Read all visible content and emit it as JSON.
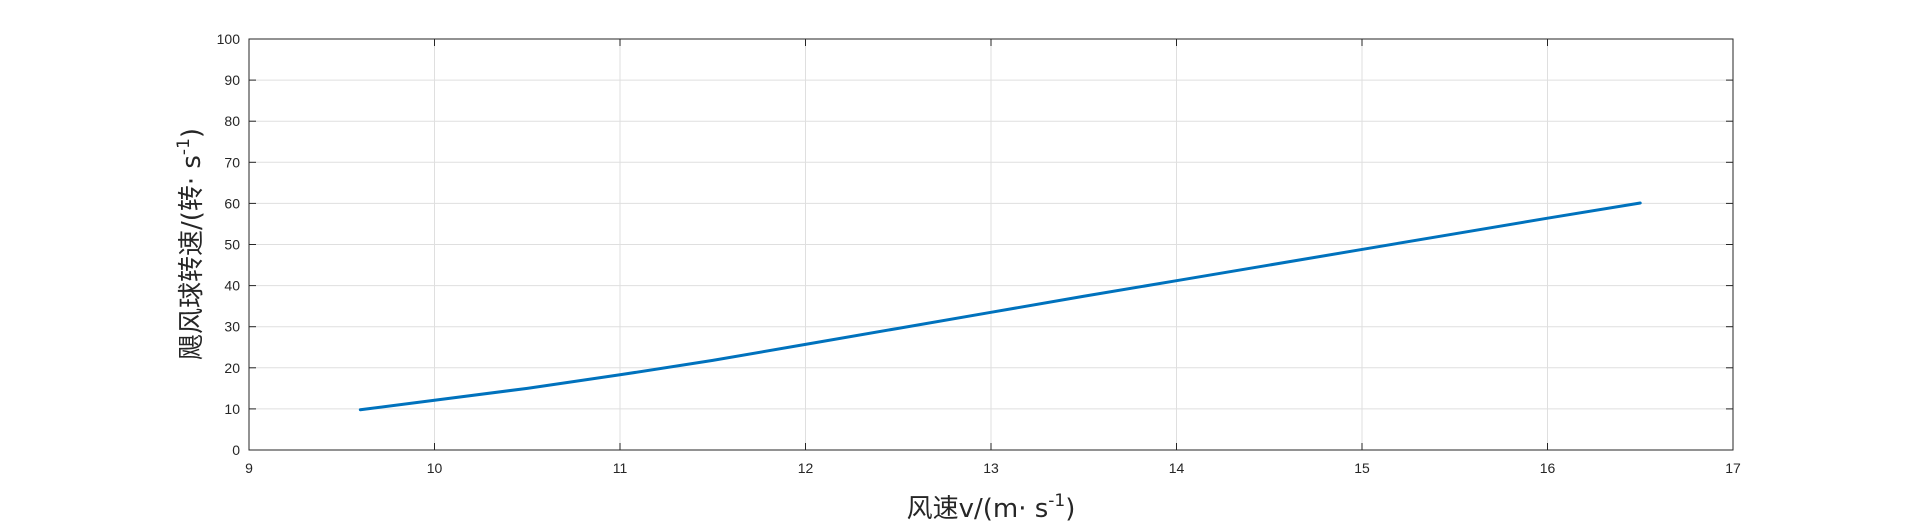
{
  "chart_data": {
    "type": "line",
    "title": "",
    "xlabel": {
      "main": "风速v/(m· s",
      "sup": "-1",
      "tail": ")"
    },
    "ylabel": {
      "main": "飓风球转速/(转· s",
      "sup": "-1",
      "tail": ")"
    },
    "xlim": [
      9,
      17
    ],
    "ylim": [
      0,
      100
    ],
    "xticks": [
      9,
      10,
      11,
      12,
      13,
      14,
      15,
      16,
      17
    ],
    "yticks": [
      0,
      10,
      20,
      30,
      40,
      50,
      60,
      70,
      80,
      90,
      100
    ],
    "grid": true,
    "legend": "none",
    "series": [
      {
        "color": "#0072BD",
        "x": [
          9.6,
          10.0,
          10.5,
          11.0,
          11.5,
          12.0,
          12.5,
          13.0,
          13.5,
          14.0,
          14.5,
          15.0,
          15.5,
          16.0,
          16.5
        ],
        "y": [
          9.8,
          12.1,
          15.0,
          18.3,
          21.8,
          25.7,
          29.6,
          33.5,
          37.4,
          41.2,
          45.0,
          48.8,
          52.6,
          56.4,
          60.1
        ]
      }
    ]
  }
}
